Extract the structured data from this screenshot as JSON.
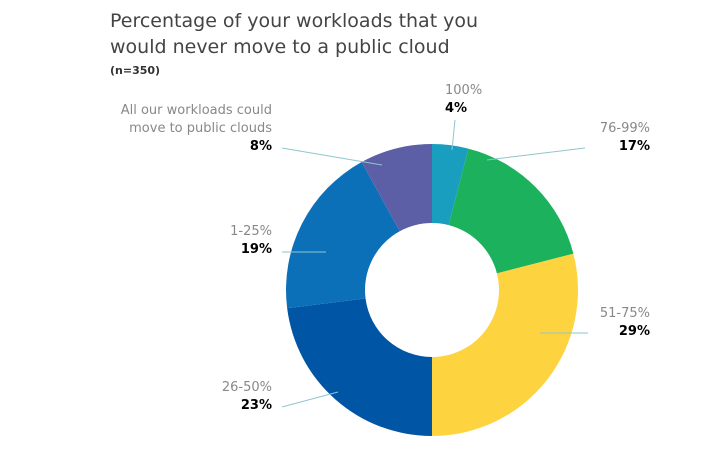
{
  "chart_data": {
    "type": "donut",
    "title": "Percentage of your workloads that you would never move to a public cloud",
    "subtitle": "(n=350)",
    "categories": [
      "100%",
      "76-99%",
      "51-75%",
      "26-50%",
      "1-25%",
      "All our workloads could move to public clouds"
    ],
    "values": [
      4,
      17,
      29,
      23,
      19,
      8
    ],
    "value_labels": [
      "4%",
      "17%",
      "29%",
      "23%",
      "19%",
      "8%"
    ],
    "colors": [
      "#1a9ec0",
      "#1cb25d",
      "#fdd43f",
      "#0055a4",
      "#0c70b9",
      "#5c5ea6"
    ]
  }
}
